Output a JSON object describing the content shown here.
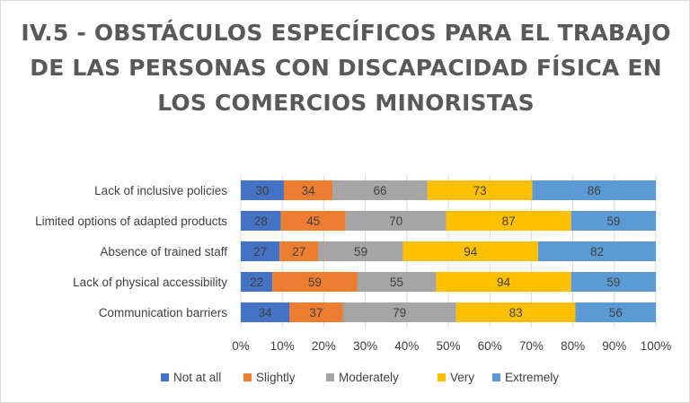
{
  "chart_data": {
    "type": "bar",
    "orientation": "horizontal",
    "stacked": "percent",
    "title": "IV.5 - OBSTÁCULOS ESPECÍFICOS PARA EL TRABAJO DE LAS PERSONAS CON DISCAPACIDAD FÍSICA EN LOS COMERCIOS MINORISTAS",
    "categories": [
      "Lack of inclusive policies",
      "Limited options of adapted products",
      "Absence of trained staff",
      "Lack of physical accessibility",
      "Communication barriers"
    ],
    "series": [
      {
        "name": "Not at all",
        "color": "#4472c4",
        "values": [
          30,
          28,
          27,
          22,
          34
        ]
      },
      {
        "name": "Slightly",
        "color": "#ed7d31",
        "values": [
          34,
          45,
          27,
          59,
          37
        ]
      },
      {
        "name": "Moderately",
        "color": "#a5a5a5",
        "values": [
          66,
          70,
          59,
          55,
          79
        ]
      },
      {
        "name": "Very",
        "color": "#ffc000",
        "values": [
          73,
          87,
          94,
          94,
          83
        ]
      },
      {
        "name": "Extremely",
        "color": "#5b9bd5",
        "values": [
          86,
          59,
          82,
          59,
          56
        ]
      }
    ],
    "xticks": [
      "0%",
      "10%",
      "20%",
      "30%",
      "40%",
      "50%",
      "60%",
      "70%",
      "80%",
      "90%",
      "100%"
    ],
    "xlim": [
      0,
      100
    ],
    "grid": true,
    "legend": "bottom"
  }
}
